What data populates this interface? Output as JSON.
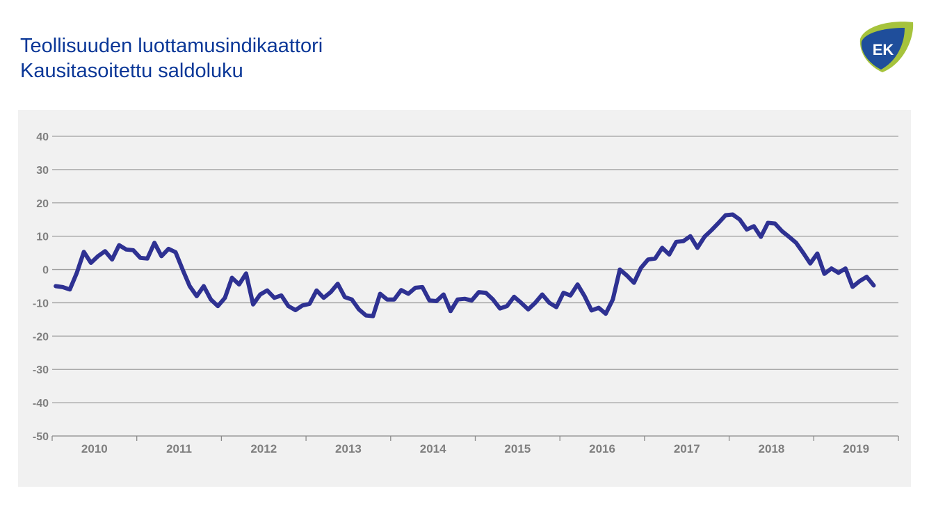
{
  "header": {
    "title_line1": "Teollisuuden luottamusindikaattori",
    "title_line2": "Kausitasoitettu saldoluku",
    "logo_text": "EK",
    "logo_icon": "ek-logo-icon"
  },
  "colors": {
    "title": "#0a3797",
    "line": "#2e3192",
    "panel_bg": "#f1f1f1",
    "grid": "#a0a0a0",
    "tick_text": "#7f7f7f",
    "logo_blue": "#1f4e9b",
    "logo_green": "#a6c33c"
  },
  "chart_data": {
    "type": "line",
    "title": "Teollisuuden luottamusindikaattori",
    "subtitle": "Kausitasoitettu saldoluku",
    "xlabel": "",
    "ylabel": "",
    "ylim": [
      -50,
      40
    ],
    "yticks": [
      40,
      30,
      20,
      10,
      0,
      -10,
      -20,
      -30,
      -40,
      -50
    ],
    "xticks": [
      "2010",
      "2011",
      "2012",
      "2013",
      "2014",
      "2015",
      "2016",
      "2017",
      "2018",
      "2019"
    ],
    "grid": true,
    "legend": null,
    "frequency": "monthly",
    "start": "2010-01",
    "series": [
      {
        "name": "Teollisuuden luottamusindikaattori",
        "values": [
          -5,
          -5.3,
          -6,
          -1,
          5.3,
          2,
          4,
          5.5,
          3,
          7.3,
          6,
          5.8,
          3.5,
          3.3,
          8,
          4,
          6.2,
          5.2,
          0,
          -5,
          -8,
          -5,
          -9,
          -11,
          -8.5,
          -2.5,
          -4.5,
          -1.2,
          -10.5,
          -7.5,
          -6.3,
          -8.5,
          -7.8,
          -11,
          -12.2,
          -10.8,
          -10.3,
          -6.3,
          -8.5,
          -6.8,
          -4.3,
          -8.3,
          -9,
          -12,
          -13.8,
          -14,
          -7.3,
          -9,
          -9,
          -6.2,
          -7.3,
          -5.5,
          -5.3,
          -9.3,
          -9.5,
          -7.5,
          -12.5,
          -9,
          -8.8,
          -9.3,
          -6.8,
          -7,
          -9,
          -11.7,
          -11,
          -8.2,
          -10,
          -12,
          -10,
          -7.5,
          -10,
          -11.3,
          -7,
          -7.8,
          -4.5,
          -8,
          -12.3,
          -11.5,
          -13.3,
          -9,
          0,
          -1.8,
          -4,
          0.5,
          3,
          3.3,
          6.5,
          4.5,
          8.3,
          8.5,
          10,
          6.5,
          9.8,
          11.8,
          14,
          16.3,
          16.5,
          15,
          12,
          13,
          9.8,
          14,
          13.8,
          11.5,
          9.8,
          8,
          5,
          1.8,
          4.8,
          -1.3,
          0.3,
          -1,
          0.3,
          -5.2,
          -3.5,
          -2.2,
          -4.8
        ]
      }
    ]
  }
}
